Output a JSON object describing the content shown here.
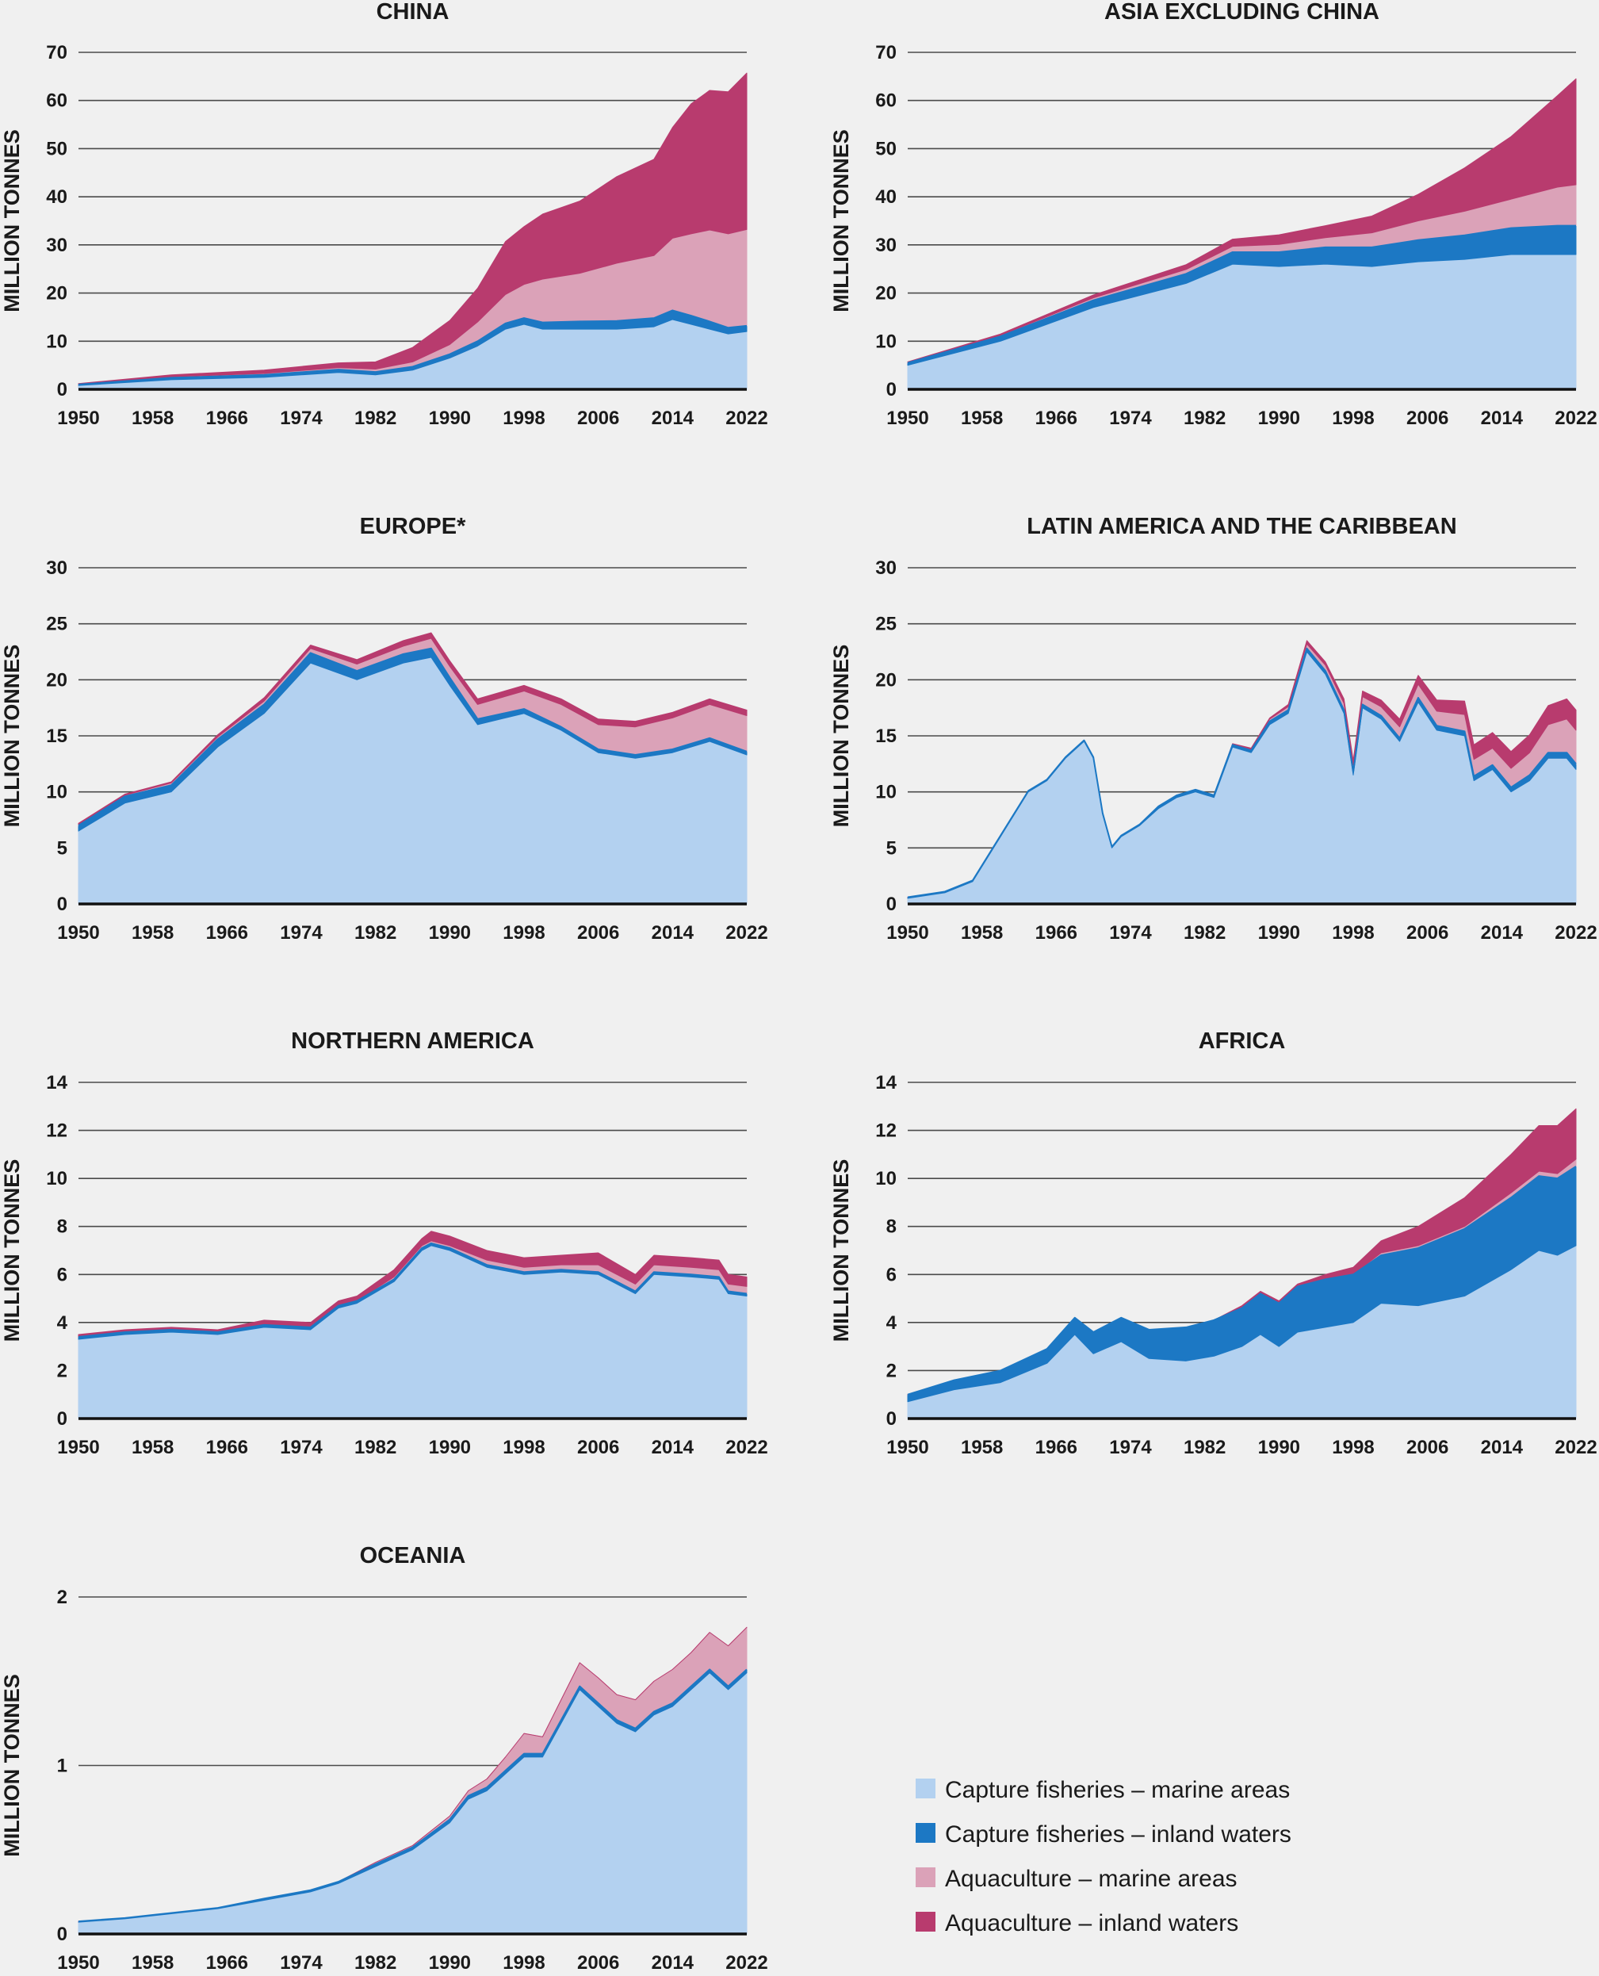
{
  "legend": [
    {
      "label": "Capture fisheries – marine areas",
      "color": "#b3d1f0"
    },
    {
      "label": "Capture fisheries – inland waters",
      "color": "#1c78c4"
    },
    {
      "label": "Aquaculture – marine areas",
      "color": "#dba2b8"
    },
    {
      "label": "Aquaculture – inland waters",
      "color": "#b83b6e"
    }
  ],
  "x_tick_labels": [
    "1950",
    "1958",
    "1966",
    "1974",
    "1982",
    "1990",
    "1998",
    "2006",
    "2014",
    "2022"
  ],
  "chart_data": [
    {
      "type": "area",
      "stacked": true,
      "title": "CHINA",
      "ylabel": "MILLION TONNES",
      "ylim": [
        0,
        70
      ],
      "yticks": [
        0,
        10,
        20,
        30,
        40,
        50,
        60,
        70
      ],
      "x_keys": [
        1950,
        1960,
        1970,
        1978,
        1982,
        1986,
        1990,
        1993,
        1996,
        1998,
        2000,
        2004,
        2008,
        2012,
        2014,
        2016,
        2018,
        2020,
        2022
      ],
      "marine_capture": [
        0.8,
        2.0,
        2.5,
        3.5,
        3.0,
        4.0,
        6.5,
        9.0,
        12.5,
        13.5,
        12.5,
        12.5,
        12.5,
        13.0,
        14.5,
        13.5,
        12.5,
        11.5,
        12.0
      ],
      "inland_capture": [
        0.2,
        0.4,
        0.5,
        0.6,
        0.6,
        0.7,
        0.8,
        1.0,
        1.2,
        1.3,
        1.4,
        1.6,
        1.7,
        1.8,
        1.9,
        1.8,
        1.6,
        1.3,
        1.2
      ],
      "marine_aqua": [
        0.1,
        0.2,
        0.3,
        0.4,
        0.6,
        1.0,
        2.0,
        4.0,
        6.0,
        7.0,
        9.0,
        10.0,
        12.0,
        13.0,
        15.0,
        17.0,
        19.0,
        19.5,
        20.0
      ],
      "inland_aqua": [
        0.1,
        0.4,
        0.7,
        1.0,
        1.5,
        3.0,
        5.0,
        7.0,
        11.0,
        12.0,
        13.5,
        15.0,
        18.0,
        20.0,
        23.0,
        27.0,
        29.0,
        29.5,
        32.5
      ]
    },
    {
      "type": "area",
      "stacked": true,
      "title": "ASIA EXCLUDING CHINA",
      "ylabel": "MILLION TONNES",
      "ylim": [
        0,
        70
      ],
      "yticks": [
        0,
        10,
        20,
        30,
        40,
        50,
        60,
        70
      ],
      "x_keys": [
        1950,
        1960,
        1970,
        1980,
        1985,
        1990,
        1995,
        2000,
        2005,
        2010,
        2015,
        2020,
        2022
      ],
      "marine_capture": [
        5.0,
        10.0,
        17.0,
        22.0,
        26.0,
        25.5,
        26.0,
        25.5,
        26.5,
        27.0,
        28.0,
        28.0,
        28.0
      ],
      "inland_capture": [
        0.5,
        1.0,
        1.5,
        2.0,
        2.5,
        3.0,
        3.5,
        4.0,
        4.5,
        5.0,
        5.5,
        6.0,
        6.0
      ],
      "marine_aqua": [
        0.1,
        0.2,
        0.5,
        0.9,
        1.2,
        1.6,
        2.0,
        3.0,
        4.0,
        5.0,
        6.0,
        8.0,
        8.5
      ],
      "inland_aqua": [
        0.1,
        0.3,
        0.6,
        1.0,
        1.5,
        2.0,
        2.5,
        3.5,
        5.5,
        9.0,
        13.0,
        19.0,
        22.0
      ]
    },
    {
      "type": "area",
      "stacked": true,
      "title": "EUROPE*",
      "ylabel": "MILLION TONNES",
      "ylim": [
        0,
        30
      ],
      "yticks": [
        0,
        5,
        10,
        15,
        20,
        25,
        30
      ],
      "x_keys": [
        1950,
        1955,
        1960,
        1965,
        1970,
        1975,
        1980,
        1985,
        1988,
        1990,
        1993,
        1998,
        2002,
        2006,
        2010,
        2014,
        2018,
        2022
      ],
      "marine_capture": [
        6.5,
        9.0,
        10.0,
        14.0,
        17.0,
        21.5,
        20.0,
        21.5,
        22.0,
        19.5,
        16.0,
        17.0,
        15.5,
        13.5,
        13.0,
        13.5,
        14.5,
        13.3
      ],
      "inland_capture": [
        0.5,
        0.6,
        0.6,
        0.7,
        0.8,
        0.9,
        0.8,
        0.8,
        0.8,
        0.7,
        0.5,
        0.4,
        0.3,
        0.3,
        0.3,
        0.3,
        0.3,
        0.3
      ],
      "marine_aqua": [
        0.1,
        0.1,
        0.2,
        0.2,
        0.3,
        0.4,
        0.6,
        0.7,
        0.9,
        1.0,
        1.3,
        1.6,
        2.0,
        2.2,
        2.5,
        2.8,
        3.0,
        3.2
      ],
      "inland_aqua": [
        0.1,
        0.1,
        0.1,
        0.2,
        0.3,
        0.3,
        0.4,
        0.5,
        0.5,
        0.5,
        0.5,
        0.5,
        0.5,
        0.5,
        0.5,
        0.5,
        0.5,
        0.5
      ]
    },
    {
      "type": "area",
      "stacked": true,
      "title": "LATIN AMERICA AND THE CARIBBEAN",
      "ylabel": "MILLION TONNES",
      "ylim": [
        0,
        30
      ],
      "yticks": [
        0,
        5,
        10,
        15,
        20,
        25,
        30
      ],
      "x_keys": [
        1950,
        1954,
        1957,
        1960,
        1963,
        1965,
        1967,
        1969,
        1970,
        1971,
        1972,
        1973,
        1975,
        1977,
        1979,
        1981,
        1983,
        1985,
        1987,
        1989,
        1991,
        1993,
        1995,
        1997,
        1998,
        1999,
        2001,
        2003,
        2005,
        2007,
        2010,
        2011,
        2013,
        2015,
        2017,
        2019,
        2021,
        2022
      ],
      "marine_capture": [
        0.5,
        1.0,
        2.0,
        6.0,
        10.0,
        11.0,
        13.0,
        14.5,
        13.0,
        8.0,
        5.0,
        6.0,
        7.0,
        8.5,
        9.5,
        10.0,
        9.5,
        14.0,
        13.5,
        16.0,
        17.0,
        22.5,
        20.5,
        17.0,
        11.5,
        17.5,
        16.5,
        14.5,
        18.0,
        15.5,
        15.0,
        11.0,
        12.0,
        10.0,
        11.0,
        13.0,
        13.0,
        12.0
      ],
      "inland_capture": [
        0.1,
        0.1,
        0.1,
        0.1,
        0.1,
        0.1,
        0.1,
        0.1,
        0.1,
        0.1,
        0.1,
        0.1,
        0.1,
        0.2,
        0.2,
        0.2,
        0.2,
        0.2,
        0.2,
        0.3,
        0.3,
        0.3,
        0.3,
        0.3,
        0.3,
        0.3,
        0.3,
        0.3,
        0.4,
        0.4,
        0.4,
        0.4,
        0.4,
        0.4,
        0.5,
        0.5,
        0.5,
        0.5
      ],
      "marine_aqua": [
        0,
        0,
        0,
        0,
        0,
        0,
        0,
        0,
        0,
        0,
        0,
        0,
        0,
        0,
        0,
        0,
        0,
        0.1,
        0.1,
        0.2,
        0.3,
        0.4,
        0.5,
        0.6,
        0.6,
        0.7,
        0.8,
        1.0,
        1.2,
        1.3,
        1.5,
        1.5,
        1.5,
        1.7,
        2.0,
        2.5,
        3.0,
        3.0
      ],
      "inland_aqua": [
        0,
        0,
        0,
        0,
        0,
        0,
        0,
        0,
        0,
        0,
        0,
        0,
        0,
        0,
        0,
        0,
        0,
        0,
        0.1,
        0.1,
        0.2,
        0.3,
        0.3,
        0.4,
        0.4,
        0.5,
        0.6,
        0.7,
        0.8,
        1.0,
        1.2,
        1.3,
        1.4,
        1.5,
        1.6,
        1.7,
        1.8,
        1.8
      ]
    },
    {
      "type": "area",
      "stacked": true,
      "title": "NORTHERN AMERICA",
      "ylabel": "MILLION TONNES",
      "ylim": [
        0,
        14
      ],
      "yticks": [
        0,
        2,
        4,
        6,
        8,
        10,
        12,
        14
      ],
      "x_keys": [
        1950,
        1955,
        1960,
        1965,
        1970,
        1975,
        1978,
        1980,
        1984,
        1987,
        1988,
        1990,
        1994,
        1998,
        2002,
        2006,
        2010,
        2012,
        2016,
        2019,
        2020,
        2022
      ],
      "marine_capture": [
        3.3,
        3.5,
        3.6,
        3.5,
        3.8,
        3.7,
        4.6,
        4.8,
        5.7,
        7.0,
        7.2,
        7.0,
        6.3,
        6.0,
        6.1,
        6.0,
        5.2,
        6.0,
        5.9,
        5.8,
        5.2,
        5.1
      ],
      "inland_capture": [
        0.1,
        0.1,
        0.1,
        0.1,
        0.1,
        0.1,
        0.1,
        0.1,
        0.1,
        0.1,
        0.1,
        0.1,
        0.1,
        0.1,
        0.1,
        0.1,
        0.1,
        0.1,
        0.1,
        0.1,
        0.1,
        0.1
      ],
      "marine_aqua": [
        0,
        0,
        0,
        0,
        0,
        0,
        0,
        0,
        0.1,
        0.1,
        0.1,
        0.1,
        0.2,
        0.2,
        0.2,
        0.3,
        0.3,
        0.3,
        0.3,
        0.3,
        0.3,
        0.3
      ],
      "inland_aqua": [
        0.1,
        0.1,
        0.1,
        0.1,
        0.2,
        0.2,
        0.2,
        0.2,
        0.3,
        0.3,
        0.4,
        0.4,
        0.4,
        0.4,
        0.4,
        0.5,
        0.4,
        0.4,
        0.4,
        0.4,
        0.4,
        0.4
      ]
    },
    {
      "type": "area",
      "stacked": true,
      "title": "AFRICA",
      "ylabel": "MILLION TONNES",
      "ylim": [
        0,
        14
      ],
      "yticks": [
        0,
        2,
        4,
        6,
        8,
        10,
        12,
        14
      ],
      "x_keys": [
        1950,
        1955,
        1960,
        1965,
        1968,
        1970,
        1973,
        1976,
        1980,
        1983,
        1986,
        1988,
        1990,
        1992,
        1995,
        1998,
        2001,
        2005,
        2010,
        2015,
        2018,
        2020,
        2022
      ],
      "marine_capture": [
        0.7,
        1.2,
        1.5,
        2.3,
        3.5,
        2.7,
        3.2,
        2.5,
        2.4,
        2.6,
        3.0,
        3.5,
        3.0,
        3.6,
        3.8,
        4.0,
        4.8,
        4.7,
        5.1,
        6.2,
        7.0,
        6.8,
        7.2
      ],
      "inland_capture": [
        0.3,
        0.4,
        0.5,
        0.6,
        0.7,
        0.9,
        1.0,
        1.2,
        1.4,
        1.5,
        1.6,
        1.7,
        1.8,
        1.9,
        2.0,
        2.0,
        2.0,
        2.4,
        2.8,
        3.0,
        3.1,
        3.2,
        3.3
      ],
      "marine_aqua": [
        0,
        0,
        0,
        0,
        0,
        0,
        0,
        0,
        0,
        0,
        0,
        0,
        0,
        0,
        0,
        0,
        0.1,
        0.1,
        0.1,
        0.2,
        0.2,
        0.2,
        0.3
      ],
      "inland_aqua": [
        0,
        0,
        0,
        0,
        0,
        0,
        0,
        0,
        0,
        0,
        0.1,
        0.1,
        0.1,
        0.1,
        0.2,
        0.3,
        0.5,
        0.8,
        1.2,
        1.6,
        1.9,
        2.0,
        2.1
      ]
    },
    {
      "type": "area",
      "stacked": true,
      "title": "OCEANIA",
      "ylabel": "MILLION TONNES",
      "ylim": [
        0,
        2
      ],
      "yticks": [
        0,
        1,
        2
      ],
      "x_keys": [
        1950,
        1955,
        1960,
        1965,
        1970,
        1975,
        1978,
        1982,
        1986,
        1990,
        1992,
        1994,
        1996,
        1998,
        2000,
        2002,
        2004,
        2006,
        2008,
        2010,
        2012,
        2014,
        2016,
        2018,
        2020,
        2022
      ],
      "marine_capture": [
        0.07,
        0.09,
        0.12,
        0.15,
        0.2,
        0.25,
        0.3,
        0.4,
        0.5,
        0.66,
        0.8,
        0.85,
        0.95,
        1.05,
        1.05,
        1.25,
        1.45,
        1.35,
        1.25,
        1.2,
        1.3,
        1.35,
        1.45,
        1.55,
        1.45,
        1.55
      ],
      "inland_capture": [
        0.005,
        0.005,
        0.005,
        0.005,
        0.01,
        0.01,
        0.01,
        0.015,
        0.015,
        0.02,
        0.02,
        0.02,
        0.02,
        0.02,
        0.02,
        0.02,
        0.02,
        0.02,
        0.02,
        0.02,
        0.02,
        0.02,
        0.02,
        0.02,
        0.02,
        0.02
      ],
      "marine_aqua": [
        0,
        0,
        0,
        0,
        0,
        0,
        0,
        0.01,
        0.01,
        0.02,
        0.03,
        0.05,
        0.08,
        0.12,
        0.1,
        0.12,
        0.14,
        0.15,
        0.15,
        0.17,
        0.18,
        0.2,
        0.2,
        0.22,
        0.24,
        0.25
      ],
      "inland_aqua": [
        0,
        0,
        0,
        0,
        0,
        0,
        0,
        0,
        0,
        0,
        0,
        0,
        0,
        0,
        0,
        0,
        0,
        0,
        0,
        0,
        0,
        0,
        0,
        0,
        0,
        0
      ]
    }
  ]
}
